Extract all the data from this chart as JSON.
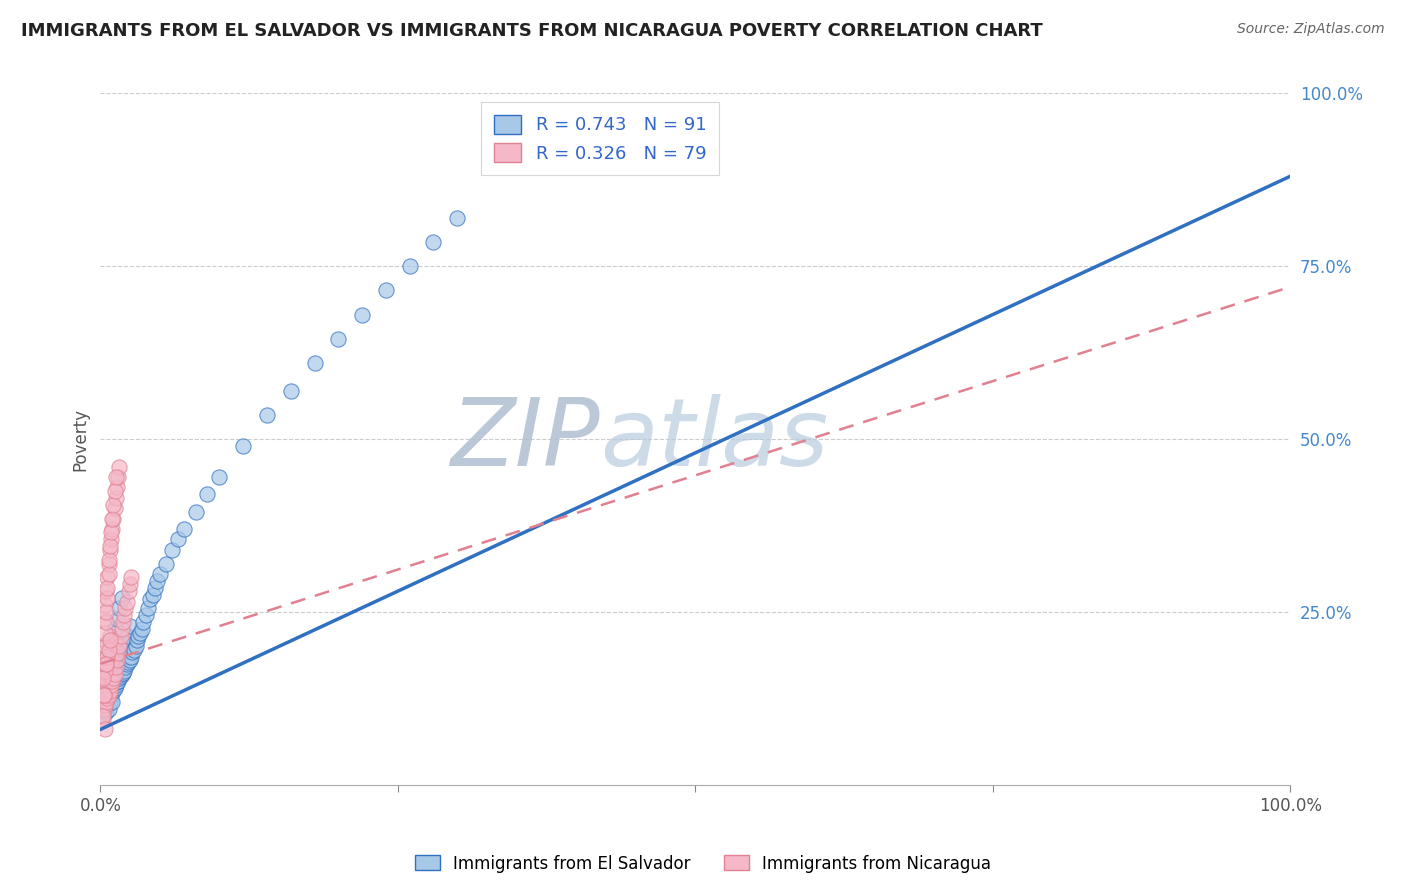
{
  "title": "IMMIGRANTS FROM EL SALVADOR VS IMMIGRANTS FROM NICARAGUA POVERTY CORRELATION CHART",
  "source": "Source: ZipAtlas.com",
  "ylabel": "Poverty",
  "xlim": [
    0,
    1.0
  ],
  "ylim": [
    0,
    1.0
  ],
  "legend1_r": "0.743",
  "legend1_n": "91",
  "legend2_r": "0.326",
  "legend2_n": "79",
  "color_blue": "#a8c8e8",
  "color_pink": "#f4b8c8",
  "color_line_blue": "#3070c0",
  "color_line_pink": "#e08090",
  "color_ytick": "#4488cc",
  "color_grid": "#cccccc",
  "color_watermark_zip": "#b8cce4",
  "color_watermark_atlas": "#c8d8ec",
  "legend_label1": "Immigrants from El Salvador",
  "legend_label2": "Immigrants from Nicaragua",
  "blue_line_x0": 0.0,
  "blue_line_y0": 0.08,
  "blue_line_x1": 1.0,
  "blue_line_y1": 0.88,
  "pink_line_x0": 0.0,
  "pink_line_y0": 0.175,
  "pink_line_x1": 1.0,
  "pink_line_y1": 0.72,
  "blue_x": [
    0.001,
    0.002,
    0.003,
    0.003,
    0.004,
    0.004,
    0.005,
    0.005,
    0.005,
    0.006,
    0.006,
    0.007,
    0.007,
    0.007,
    0.008,
    0.008,
    0.008,
    0.009,
    0.009,
    0.01,
    0.01,
    0.01,
    0.011,
    0.011,
    0.012,
    0.012,
    0.013,
    0.013,
    0.014,
    0.014,
    0.015,
    0.015,
    0.016,
    0.016,
    0.017,
    0.017,
    0.018,
    0.018,
    0.019,
    0.02,
    0.02,
    0.021,
    0.022,
    0.022,
    0.023,
    0.024,
    0.025,
    0.025,
    0.026,
    0.027,
    0.028,
    0.03,
    0.031,
    0.032,
    0.033,
    0.035,
    0.036,
    0.038,
    0.04,
    0.042,
    0.044,
    0.046,
    0.048,
    0.05,
    0.055,
    0.06,
    0.065,
    0.07,
    0.08,
    0.09,
    0.1,
    0.12,
    0.14,
    0.16,
    0.18,
    0.2,
    0.22,
    0.24,
    0.26,
    0.28,
    0.3,
    0.005,
    0.006,
    0.007,
    0.008,
    0.009,
    0.01,
    0.012,
    0.014,
    0.016,
    0.018
  ],
  "blue_y": [
    0.12,
    0.1,
    0.115,
    0.15,
    0.11,
    0.145,
    0.105,
    0.13,
    0.16,
    0.12,
    0.155,
    0.11,
    0.135,
    0.165,
    0.12,
    0.145,
    0.175,
    0.13,
    0.16,
    0.12,
    0.15,
    0.18,
    0.135,
    0.165,
    0.14,
    0.17,
    0.145,
    0.175,
    0.148,
    0.178,
    0.15,
    0.185,
    0.155,
    0.19,
    0.158,
    0.195,
    0.16,
    0.2,
    0.162,
    0.165,
    0.205,
    0.17,
    0.175,
    0.215,
    0.178,
    0.185,
    0.18,
    0.23,
    0.185,
    0.192,
    0.195,
    0.2,
    0.21,
    0.215,
    0.22,
    0.225,
    0.235,
    0.245,
    0.255,
    0.268,
    0.275,
    0.285,
    0.295,
    0.305,
    0.32,
    0.34,
    0.355,
    0.37,
    0.395,
    0.42,
    0.445,
    0.49,
    0.535,
    0.57,
    0.61,
    0.645,
    0.68,
    0.715,
    0.75,
    0.785,
    0.82,
    0.175,
    0.18,
    0.185,
    0.195,
    0.205,
    0.21,
    0.225,
    0.24,
    0.255,
    0.27
  ],
  "pink_x": [
    0.001,
    0.002,
    0.003,
    0.003,
    0.003,
    0.004,
    0.004,
    0.004,
    0.005,
    0.005,
    0.005,
    0.006,
    0.006,
    0.006,
    0.007,
    0.007,
    0.008,
    0.008,
    0.008,
    0.009,
    0.009,
    0.01,
    0.01,
    0.011,
    0.011,
    0.012,
    0.012,
    0.013,
    0.014,
    0.015,
    0.016,
    0.017,
    0.018,
    0.019,
    0.02,
    0.021,
    0.022,
    0.024,
    0.025,
    0.026,
    0.003,
    0.004,
    0.005,
    0.006,
    0.007,
    0.008,
    0.009,
    0.01,
    0.011,
    0.012,
    0.013,
    0.014,
    0.015,
    0.016,
    0.004,
    0.004,
    0.005,
    0.005,
    0.006,
    0.006,
    0.007,
    0.007,
    0.008,
    0.009,
    0.01,
    0.011,
    0.012,
    0.013,
    0.004,
    0.003,
    0.005,
    0.006,
    0.007,
    0.008,
    0.002,
    0.003,
    0.002,
    0.004,
    0.005
  ],
  "pink_y": [
    0.115,
    0.095,
    0.11,
    0.145,
    0.175,
    0.115,
    0.15,
    0.185,
    0.12,
    0.155,
    0.2,
    0.125,
    0.16,
    0.205,
    0.13,
    0.17,
    0.135,
    0.17,
    0.215,
    0.145,
    0.185,
    0.15,
    0.195,
    0.155,
    0.205,
    0.16,
    0.21,
    0.17,
    0.18,
    0.19,
    0.2,
    0.215,
    0.225,
    0.235,
    0.245,
    0.255,
    0.265,
    0.28,
    0.29,
    0.3,
    0.24,
    0.26,
    0.28,
    0.3,
    0.32,
    0.34,
    0.355,
    0.37,
    0.385,
    0.4,
    0.415,
    0.43,
    0.445,
    0.46,
    0.2,
    0.22,
    0.235,
    0.25,
    0.27,
    0.285,
    0.305,
    0.325,
    0.345,
    0.365,
    0.385,
    0.405,
    0.425,
    0.445,
    0.165,
    0.13,
    0.175,
    0.185,
    0.195,
    0.21,
    0.1,
    0.13,
    0.155,
    0.08,
    0.175
  ]
}
